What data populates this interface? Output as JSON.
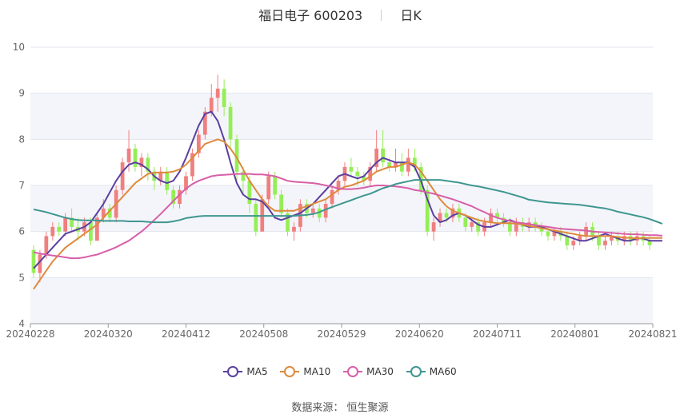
{
  "title": {
    "name": "福日电子 600203",
    "period": "日K"
  },
  "legend": [
    {
      "name": "MA5",
      "color": "#5b3fa0"
    },
    {
      "name": "MA10",
      "color": "#dd8a3d"
    },
    {
      "name": "MA30",
      "color": "#d85fa8"
    },
    {
      "name": "MA60",
      "color": "#3f9690"
    }
  ],
  "source_text": "数据来源： 恒生聚源",
  "colors": {
    "up": "#f07f7f",
    "down": "#95ee57",
    "grid_band": "#f4f5fa",
    "grid_line": "#e2e5ee",
    "axis": "#666666"
  },
  "chart_data": {
    "type": "candlestick",
    "title": "福日电子 600203",
    "ylim": [
      4,
      10
    ],
    "yticks": [
      4,
      5,
      6,
      7,
      8,
      9,
      10
    ],
    "xticks": [
      "20240228",
      "20240320",
      "20240412",
      "20240508",
      "20240529",
      "20240620",
      "20240711",
      "20240801",
      "20240821"
    ],
    "candles": [
      [
        5.6,
        5.1,
        5.7,
        5.0
      ],
      [
        5.1,
        5.5,
        5.6,
        4.9
      ],
      [
        5.5,
        5.9,
        6.0,
        5.4
      ],
      [
        5.9,
        6.1,
        6.2,
        5.8
      ],
      [
        6.1,
        6.0,
        6.2,
        5.9
      ],
      [
        6.0,
        6.3,
        6.4,
        5.9
      ],
      [
        6.3,
        6.1,
        6.5,
        6.0
      ],
      [
        6.1,
        6.0,
        6.3,
        5.8
      ],
      [
        6.0,
        6.2,
        6.3,
        5.9
      ],
      [
        6.2,
        5.8,
        6.3,
        5.7
      ],
      [
        5.8,
        6.3,
        6.4,
        5.8
      ],
      [
        6.3,
        6.5,
        6.7,
        6.2
      ],
      [
        6.5,
        6.3,
        6.6,
        6.2
      ],
      [
        6.3,
        6.9,
        7.0,
        6.2
      ],
      [
        6.9,
        7.5,
        7.6,
        6.8
      ],
      [
        7.5,
        7.8,
        8.2,
        7.3
      ],
      [
        7.8,
        7.4,
        7.9,
        7.3
      ],
      [
        7.4,
        7.6,
        7.7,
        7.2
      ],
      [
        7.6,
        7.3,
        7.7,
        7.1
      ],
      [
        7.3,
        7.1,
        7.4,
        6.9
      ],
      [
        7.1,
        7.3,
        7.4,
        7.0
      ],
      [
        7.3,
        6.9,
        7.4,
        6.8
      ],
      [
        6.9,
        6.6,
        7.0,
        6.5
      ],
      [
        6.6,
        6.9,
        7.0,
        6.5
      ],
      [
        6.9,
        7.2,
        7.3,
        6.8
      ],
      [
        7.2,
        7.7,
        7.8,
        7.1
      ],
      [
        7.7,
        8.1,
        8.2,
        7.6
      ],
      [
        8.1,
        8.6,
        8.7,
        8.0
      ],
      [
        8.6,
        8.9,
        9.2,
        8.5
      ],
      [
        8.9,
        9.1,
        9.4,
        8.6
      ],
      [
        9.1,
        8.7,
        9.3,
        8.5
      ],
      [
        8.7,
        8.0,
        8.8,
        7.8
      ],
      [
        8.0,
        7.3,
        8.1,
        7.1
      ],
      [
        7.3,
        7.1,
        7.4,
        6.8
      ],
      [
        7.1,
        6.6,
        7.2,
        6.4
      ],
      [
        6.6,
        6.0,
        6.7,
        5.9
      ],
      [
        6.0,
        6.7,
        6.8,
        6.0
      ],
      [
        6.7,
        7.2,
        7.3,
        6.6
      ],
      [
        7.2,
        6.8,
        7.3,
        6.7
      ],
      [
        6.8,
        6.4,
        6.9,
        6.3
      ],
      [
        6.4,
        6.0,
        6.5,
        5.9
      ],
      [
        6.0,
        6.1,
        6.2,
        5.8
      ],
      [
        6.1,
        6.6,
        6.7,
        6.0
      ],
      [
        6.6,
        6.4,
        6.7,
        6.3
      ],
      [
        6.4,
        6.5,
        6.6,
        6.3
      ],
      [
        6.5,
        6.3,
        6.6,
        6.2
      ],
      [
        6.3,
        6.6,
        6.7,
        6.2
      ],
      [
        6.6,
        6.9,
        7.0,
        6.5
      ],
      [
        6.9,
        7.1,
        7.2,
        6.8
      ],
      [
        7.1,
        7.4,
        7.5,
        7.0
      ],
      [
        7.4,
        7.3,
        7.6,
        7.2
      ],
      [
        7.3,
        7.2,
        7.4,
        7.0
      ],
      [
        7.2,
        7.1,
        7.3,
        7.0
      ],
      [
        7.1,
        7.4,
        7.5,
        7.0
      ],
      [
        7.4,
        7.8,
        8.2,
        7.3
      ],
      [
        7.8,
        7.5,
        8.2,
        7.4
      ],
      [
        7.5,
        7.4,
        7.6,
        7.3
      ],
      [
        7.4,
        7.5,
        7.8,
        7.3
      ],
      [
        7.5,
        7.3,
        7.7,
        7.2
      ],
      [
        7.3,
        7.6,
        7.8,
        7.2
      ],
      [
        7.6,
        7.4,
        7.8,
        7.3
      ],
      [
        7.4,
        6.9,
        7.5,
        6.8
      ],
      [
        6.9,
        6.0,
        7.0,
        5.9
      ],
      [
        6.0,
        6.2,
        6.3,
        5.8
      ],
      [
        6.2,
        6.4,
        6.5,
        6.1
      ],
      [
        6.4,
        6.3,
        6.5,
        6.2
      ],
      [
        6.3,
        6.5,
        6.6,
        6.2
      ],
      [
        6.5,
        6.3,
        6.6,
        6.2
      ],
      [
        6.3,
        6.1,
        6.4,
        6.0
      ],
      [
        6.1,
        6.2,
        6.3,
        6.0
      ],
      [
        6.2,
        6.0,
        6.3,
        5.9
      ],
      [
        6.0,
        6.2,
        6.3,
        5.9
      ],
      [
        6.2,
        6.4,
        6.5,
        6.1
      ],
      [
        6.4,
        6.3,
        6.5,
        6.2
      ],
      [
        6.3,
        6.2,
        6.4,
        6.1
      ],
      [
        6.2,
        6.0,
        6.3,
        5.9
      ],
      [
        6.0,
        6.2,
        6.3,
        5.9
      ],
      [
        6.2,
        6.1,
        6.3,
        6.0
      ],
      [
        6.1,
        6.2,
        6.3,
        6.0
      ],
      [
        6.2,
        6.1,
        6.3,
        6.0
      ],
      [
        6.1,
        6.0,
        6.2,
        5.9
      ],
      [
        6.0,
        5.9,
        6.1,
        5.8
      ],
      [
        5.9,
        6.0,
        6.1,
        5.8
      ],
      [
        6.0,
        5.9,
        6.1,
        5.8
      ],
      [
        5.9,
        5.7,
        6.0,
        5.6
      ],
      [
        5.7,
        5.8,
        5.9,
        5.6
      ],
      [
        5.8,
        5.9,
        6.0,
        5.7
      ],
      [
        5.9,
        6.1,
        6.2,
        5.8
      ],
      [
        6.1,
        5.9,
        6.2,
        5.8
      ],
      [
        5.9,
        5.7,
        6.0,
        5.6
      ],
      [
        5.7,
        5.8,
        5.9,
        5.6
      ],
      [
        5.8,
        5.9,
        6.0,
        5.7
      ],
      [
        5.9,
        5.8,
        6.0,
        5.7
      ],
      [
        5.8,
        5.9,
        6.0,
        5.7
      ],
      [
        5.9,
        5.8,
        6.0,
        5.7
      ],
      [
        5.8,
        5.9,
        6.0,
        5.7
      ],
      [
        5.9,
        5.8,
        6.0,
        5.7
      ],
      [
        5.8,
        5.7,
        5.9,
        5.6
      ]
    ],
    "series": [
      {
        "name": "MA5",
        "values": [
          5.2,
          5.35,
          5.5,
          5.65,
          5.8,
          5.95,
          6.0,
          6.05,
          6.1,
          6.2,
          6.4,
          6.6,
          6.85,
          7.1,
          7.3,
          7.45,
          7.5,
          7.45,
          7.35,
          7.2,
          7.1,
          7.05,
          7.1,
          7.3,
          7.6,
          7.95,
          8.3,
          8.55,
          8.6,
          8.4,
          8.0,
          7.5,
          7.05,
          6.8,
          6.7,
          6.7,
          6.65,
          6.5,
          6.3,
          6.25,
          6.3,
          6.35,
          6.4,
          6.5,
          6.6,
          6.75,
          6.9,
          7.05,
          7.2,
          7.25,
          7.2,
          7.15,
          7.2,
          7.35,
          7.5,
          7.6,
          7.55,
          7.5,
          7.5,
          7.5,
          7.4,
          7.1,
          6.7,
          6.35,
          6.2,
          6.25,
          6.35,
          6.4,
          6.35,
          6.25,
          6.15,
          6.1,
          6.1,
          6.15,
          6.2,
          6.25,
          6.2,
          6.15,
          6.1,
          6.1,
          6.1,
          6.05,
          6.0,
          5.95,
          5.9,
          5.85,
          5.8,
          5.8,
          5.85,
          5.9,
          5.95,
          5.9,
          5.85,
          5.8,
          5.8,
          5.85,
          5.85,
          5.8,
          5.8,
          5.8
        ]
      },
      {
        "name": "MA10",
        "values": [
          4.75,
          4.95,
          5.15,
          5.35,
          5.5,
          5.65,
          5.75,
          5.85,
          5.95,
          6.05,
          6.15,
          6.3,
          6.45,
          6.6,
          6.75,
          6.9,
          7.05,
          7.15,
          7.25,
          7.28,
          7.28,
          7.28,
          7.3,
          7.35,
          7.45,
          7.6,
          7.75,
          7.9,
          7.95,
          8.0,
          7.95,
          7.8,
          7.6,
          7.35,
          7.1,
          6.9,
          6.7,
          6.55,
          6.45,
          6.45,
          6.45,
          6.45,
          6.5,
          6.55,
          6.6,
          6.65,
          6.7,
          6.8,
          6.9,
          6.97,
          7.0,
          7.05,
          7.1,
          7.2,
          7.3,
          7.35,
          7.4,
          7.4,
          7.45,
          7.5,
          7.45,
          7.3,
          7.1,
          6.9,
          6.7,
          6.55,
          6.45,
          6.4,
          6.35,
          6.3,
          6.25,
          6.22,
          6.2,
          6.18,
          6.18,
          6.18,
          6.17,
          6.15,
          6.12,
          6.1,
          6.07,
          6.05,
          6.02,
          6.0,
          5.97,
          5.95,
          5.92,
          5.9,
          5.9,
          5.9,
          5.9,
          5.9,
          5.88,
          5.87,
          5.86,
          5.85,
          5.86,
          5.86,
          5.86,
          5.86
        ]
      },
      {
        "name": "MA30",
        "values": [
          5.55,
          5.52,
          5.5,
          5.48,
          5.46,
          5.44,
          5.42,
          5.42,
          5.44,
          5.47,
          5.5,
          5.55,
          5.6,
          5.66,
          5.73,
          5.8,
          5.9,
          6.0,
          6.12,
          6.25,
          6.38,
          6.52,
          6.66,
          6.8,
          6.93,
          7.03,
          7.1,
          7.15,
          7.2,
          7.22,
          7.23,
          7.24,
          7.25,
          7.25,
          7.25,
          7.24,
          7.24,
          7.22,
          7.2,
          7.15,
          7.1,
          7.08,
          7.07,
          7.06,
          7.05,
          7.03,
          7.0,
          6.97,
          6.93,
          6.92,
          6.92,
          6.93,
          6.95,
          6.98,
          7.0,
          7.0,
          6.99,
          6.98,
          6.96,
          6.94,
          6.9,
          6.88,
          6.85,
          6.82,
          6.78,
          6.74,
          6.7,
          6.65,
          6.6,
          6.55,
          6.48,
          6.42,
          6.35,
          6.3,
          6.26,
          6.23,
          6.2,
          6.18,
          6.16,
          6.14,
          6.12,
          6.1,
          6.08,
          6.06,
          6.05,
          6.04,
          6.03,
          6.02,
          6.0,
          5.99,
          5.98,
          5.97,
          5.96,
          5.95,
          5.94,
          5.94,
          5.93,
          5.92,
          5.92,
          5.91
        ]
      },
      {
        "name": "MA60",
        "values": [
          6.48,
          6.45,
          6.42,
          6.38,
          6.34,
          6.3,
          6.27,
          6.25,
          6.24,
          6.24,
          6.24,
          6.23,
          6.23,
          6.23,
          6.23,
          6.22,
          6.22,
          6.22,
          6.21,
          6.2,
          6.2,
          6.2,
          6.22,
          6.25,
          6.29,
          6.31,
          6.33,
          6.34,
          6.34,
          6.34,
          6.34,
          6.34,
          6.34,
          6.34,
          6.34,
          6.34,
          6.34,
          6.34,
          6.34,
          6.34,
          6.34,
          6.34,
          6.35,
          6.36,
          6.38,
          6.42,
          6.48,
          6.53,
          6.58,
          6.63,
          6.68,
          6.73,
          6.78,
          6.82,
          6.88,
          6.94,
          6.98,
          7.03,
          7.06,
          7.09,
          7.12,
          7.12,
          7.12,
          7.12,
          7.12,
          7.1,
          7.08,
          7.06,
          7.03,
          7.0,
          6.98,
          6.95,
          6.92,
          6.89,
          6.86,
          6.82,
          6.78,
          6.74,
          6.69,
          6.67,
          6.65,
          6.63,
          6.62,
          6.61,
          6.6,
          6.59,
          6.58,
          6.56,
          6.54,
          6.52,
          6.5,
          6.47,
          6.43,
          6.4,
          6.37,
          6.34,
          6.31,
          6.27,
          6.22,
          6.17
        ]
      }
    ]
  }
}
